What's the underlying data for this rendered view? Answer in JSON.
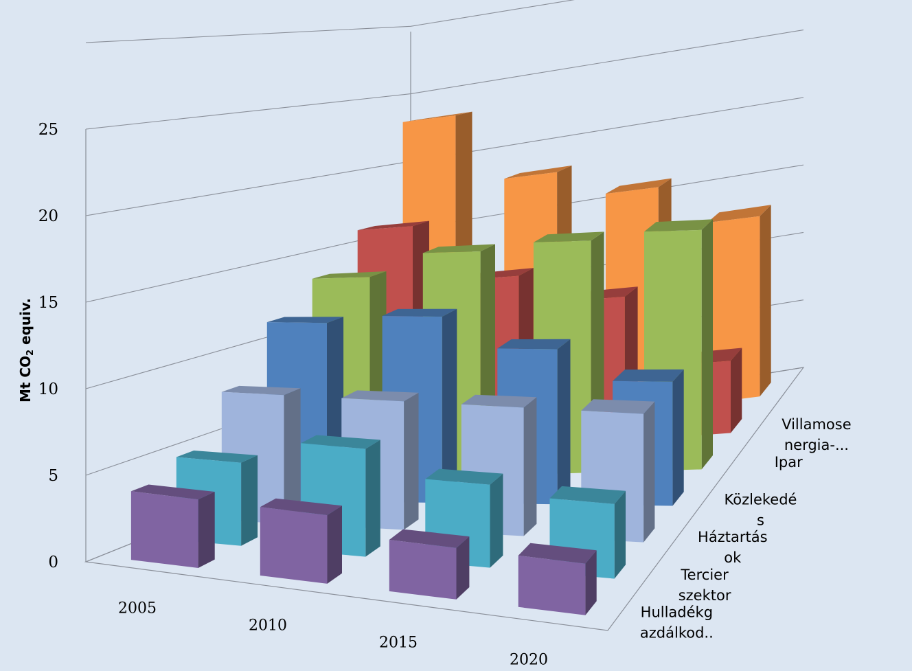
{
  "chart_data": {
    "type": "bar",
    "variant": "3d-column",
    "ylabel": "Mt CO",
    "ylabel_sub": "2",
    "ylabel_suffix": " equiv.",
    "ylim": [
      0,
      25
    ],
    "yticks": [
      "0",
      "5",
      "10",
      "15",
      "20",
      "25"
    ],
    "categories": [
      "2005",
      "2010",
      "2015",
      "2020"
    ],
    "series": [
      {
        "name_lines": [
          "Hulladékg",
          "azdálkod.."
        ],
        "color": "#8064a2",
        "values": [
          4,
          4,
          3,
          3
        ]
      },
      {
        "name_lines": [
          "Tercier",
          "szektor"
        ],
        "color": "#4bacc6",
        "values": [
          5,
          6.5,
          5,
          4.5
        ]
      },
      {
        "name_lines": [
          "Háztartás",
          "ok"
        ],
        "color": "#9fb4dc",
        "values": [
          8,
          8,
          8,
          8
        ]
      },
      {
        "name_lines": [
          "Közlekedé",
          "s"
        ],
        "color": "#4f81bd",
        "values": [
          11.5,
          12,
          10,
          8
        ]
      },
      {
        "name_lines": [
          "Ipar"
        ],
        "color": "#9bbb59",
        "values": [
          13.5,
          15,
          15.5,
          16
        ]
      },
      {
        "name_lines": [
          "Villamose",
          "nergia-..."
        ],
        "color": "#c0504d",
        "values": [
          16,
          12,
          10,
          5
        ]
      },
      {
        "name_lines": [],
        "color": "#f79646",
        "values": [
          23,
          18,
          16,
          13
        ]
      }
    ],
    "grid": true,
    "legend": "none"
  }
}
